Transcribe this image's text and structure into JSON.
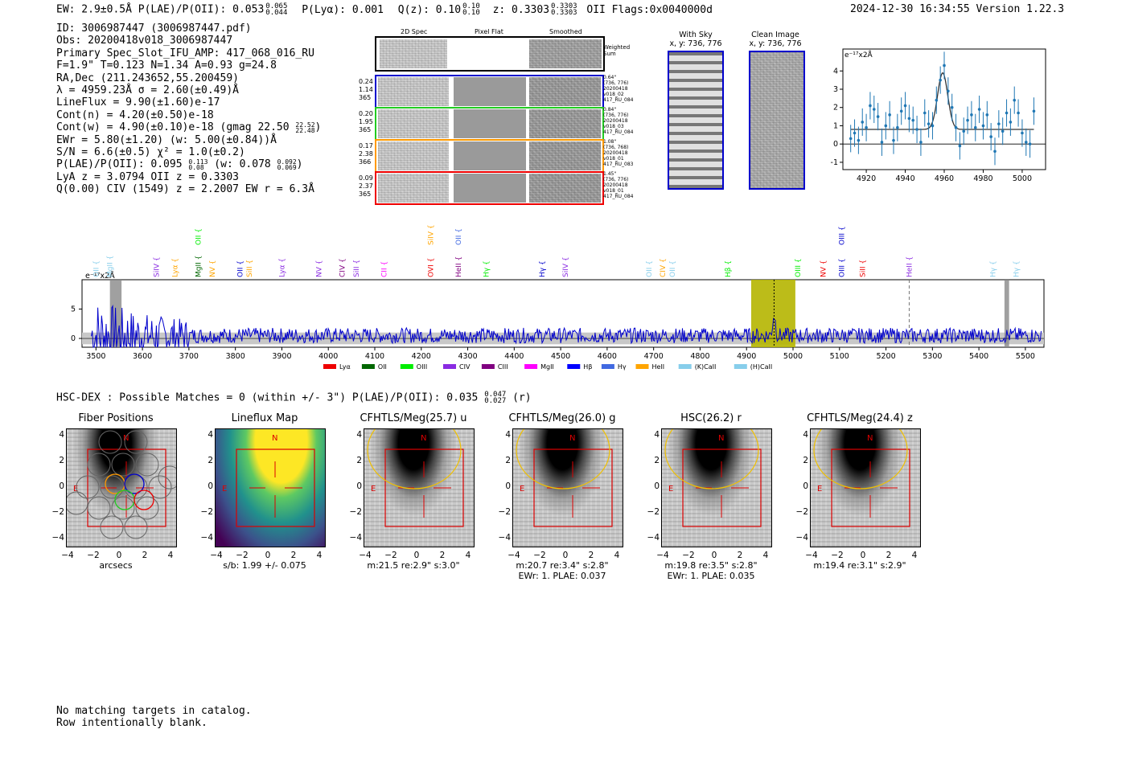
{
  "header": {
    "line": "EW: 2.9±0.5Å  P(LAE)/P(OII): 0.053",
    "pl_sup": "0.065",
    "pl_sub": "0.044",
    "plya": "P(Lyα): 0.001",
    "qz": "Q(z): 0.10",
    "qz_sup": "0.10",
    "qz_sub": "0.10",
    "z": "z: 0.3303",
    "z_sup": "0.3303",
    "z_sub": "0.3303",
    "z_tail": "OII   Flags:0x0040000d",
    "timestamp": "2024-12-30 16:34:55",
    "version": "Version 1.22.3"
  },
  "info": {
    "l1": "ID: 3006987447 (3006987447.pdf)",
    "l2": "Obs: 20200418v018_3006987447",
    "l3": "Primary Spec_Slot_IFU_AMP: 417_068_016_RU",
    "l4": "F=1.9\"  T=0.123  N=1.34  A=0.93  g=24.8",
    "l5": "RA,Dec (211.243652,55.200459)",
    "l6": "λ = 4959.23Å  σ = 2.60(±0.49)Å",
    "l7": "LineFlux = 9.90(±1.60)e-17",
    "l8": "Cont(n) = 4.20(±0.50)e-18",
    "l9": "Cont(w) = 4.90(±0.10)e-18 (gmag 22.50",
    "l9_sup": "22.52",
    "l9_sub": "22.48",
    "l10": "EWr = 5.80(±1.20) (w: 5.00(±0.84))Å",
    "l11": "S/N = 6.6(±0.5)  χ² = 1.0(±0.2)",
    "l12": "P(LAE)/P(OII): 0.095",
    "l12_sup": "0.113",
    "l12_sub": "0.08",
    "l12_w": "(w: 0.078",
    "l12_wsup": "0.092",
    "l12_wsub": "0.069",
    "l13": "LyA z = 3.0794  OII z = 0.3303",
    "l14": "Q(0.00) CIV (1549) z = 2.2007  EW r = 6.3Å"
  },
  "spec2d": {
    "col_headers": [
      "2D Spec",
      "Pixel Flat",
      "Smoothed"
    ],
    "weighted": "Weighted Sum",
    "rows": [
      {
        "left": [
          "0.24",
          "1.14",
          "365"
        ],
        "right": [
          "0.64\"",
          "(736, 776)",
          "20200418",
          "v018_02",
          "417_RU_084"
        ],
        "color": "#0000cc"
      },
      {
        "left": [
          "0.20",
          "1.95",
          "365"
        ],
        "right": [
          "0.84\"",
          "(736, 776)",
          "20200418",
          "v018_03",
          "417_RU_084"
        ],
        "color": "#22cc22"
      },
      {
        "left": [
          "0.17",
          "2.38",
          "366"
        ],
        "right": [
          "1.08\"",
          "(736, 768)",
          "20200418",
          "v018_01",
          "417_RU_083"
        ],
        "color": "#ff9900"
      },
      {
        "left": [
          "0.09",
          "2.37",
          "365"
        ],
        "right": [
          "1.45\"",
          "(736, 776)",
          "20200418",
          "v018_01",
          "417_RU_084"
        ],
        "color": "#ee0000"
      }
    ]
  },
  "sky": {
    "with_sky": "With Sky",
    "with_sky_xy": "x, y: 736, 776",
    "clean": "Clean Image",
    "clean_xy": "x, y: 736, 776"
  },
  "chart_data": [
    {
      "type": "scatter",
      "title": "",
      "unit_label": "e⁻¹⁷x2Å",
      "xlim": [
        4908,
        5012
      ],
      "ylim": [
        -1.4,
        5.2
      ],
      "xticks": [
        4920,
        4940,
        4960,
        4980,
        5000
      ],
      "yticks": [
        -1,
        0,
        1,
        2,
        3,
        4
      ],
      "points_x": [
        4912,
        4914,
        4916,
        4918,
        4920,
        4922,
        4924,
        4926,
        4928,
        4930,
        4932,
        4934,
        4936,
        4938,
        4940,
        4942,
        4944,
        4946,
        4948,
        4950,
        4952,
        4954,
        4956,
        4958,
        4960,
        4962,
        4964,
        4966,
        4968,
        4970,
        4972,
        4974,
        4976,
        4978,
        4980,
        4982,
        4984,
        4986,
        4988,
        4990,
        4992,
        4994,
        4996,
        4998,
        5000,
        5002,
        5004,
        5006
      ],
      "points_y": [
        0.3,
        0.6,
        0.2,
        1.2,
        0.9,
        2.1,
        1.9,
        1.5,
        0.1,
        1.0,
        1.6,
        0.2,
        0.9,
        1.8,
        2.1,
        1.4,
        1.3,
        0.8,
        0.1,
        1.7,
        1.1,
        1.0,
        2.4,
        3.5,
        4.3,
        2.9,
        2.0,
        0.9,
        -0.1,
        0.7,
        1.3,
        1.6,
        0.9,
        1.9,
        1.0,
        1.6,
        0.4,
        -0.4,
        1.1,
        0.7,
        1.7,
        1.2,
        2.4,
        1.7,
        0.6,
        0.1,
        0.0,
        1.8
      ],
      "errors": 0.75,
      "model": {
        "continuum": 0.8,
        "center": 4959.2,
        "amplitude": 3.1,
        "sigma": 2.6,
        "x_range": [
          4912,
          5006
        ]
      }
    },
    {
      "type": "line",
      "unit_label": "e⁻¹⁷x2Å",
      "xlim": [
        3470,
        5540
      ],
      "ylim": [
        -1.5,
        10
      ],
      "xticks": [
        3500,
        3600,
        3700,
        3800,
        3900,
        4000,
        4100,
        4200,
        4300,
        4400,
        4500,
        4600,
        4700,
        4800,
        4900,
        5000,
        5100,
        5200,
        5300,
        5400,
        5500
      ],
      "yticks": [
        0,
        5
      ],
      "highlight_band": [
        4910,
        5005
      ],
      "emission_center": 4959.2,
      "dashed_line_at": 5250,
      "masked_regions": [
        [
          3530,
          3555
        ],
        [
          5455,
          5465
        ]
      ],
      "legend": [
        {
          "label": "Lyα",
          "color": "#ee0000"
        },
        {
          "label": "OII",
          "color": "#006600"
        },
        {
          "label": "OIII",
          "color": "#00ee00"
        },
        {
          "label": "CIV",
          "color": "#8a2be2"
        },
        {
          "label": "CIII",
          "color": "#800080"
        },
        {
          "label": "MgII",
          "color": "#ff00ff"
        },
        {
          "label": "Hβ",
          "color": "#0000ff"
        },
        {
          "label": "Hγ",
          "color": "#4169e1"
        },
        {
          "label": "HeII",
          "color": "#ffa500"
        },
        {
          "label": "(K)CaII",
          "color": "#87ceeb"
        },
        {
          "label": "(H)CaII",
          "color": "#87ceeb"
        }
      ],
      "line_labels": [
        {
          "x": 3500,
          "label": "OII",
          "color": "#87ceeb",
          "row": 1
        },
        {
          "x": 3530,
          "label": "MgII",
          "color": "#87ceeb",
          "row": 1
        },
        {
          "x": 3630,
          "label": "SiIV",
          "color": "#8a2be2",
          "row": 1
        },
        {
          "x": 3670,
          "label": "Lyα",
          "color": "#ffa500",
          "row": 1
        },
        {
          "x": 3720,
          "label": "OII",
          "color": "#00ee00",
          "row": 0
        },
        {
          "x": 3720,
          "label": "MgII",
          "color": "#006600",
          "row": 1
        },
        {
          "x": 3750,
          "label": "NV",
          "color": "#ffa500",
          "row": 1
        },
        {
          "x": 3810,
          "label": "OII",
          "color": "#0000cc",
          "row": 1
        },
        {
          "x": 3830,
          "label": "SiII",
          "color": "#ffa500",
          "row": 1
        },
        {
          "x": 3900,
          "label": "Lyα",
          "color": "#8a2be2",
          "row": 1
        },
        {
          "x": 3980,
          "label": "NV",
          "color": "#8a2be2",
          "row": 1
        },
        {
          "x": 4030,
          "label": "CIV",
          "color": "#800080",
          "row": 1
        },
        {
          "x": 4060,
          "label": "SiII",
          "color": "#8a2be2",
          "row": 1
        },
        {
          "x": 4120,
          "label": "CII",
          "color": "#ff00ff",
          "row": 1
        },
        {
          "x": 4220,
          "label": "SiIV",
          "color": "#ffa500",
          "row": 0
        },
        {
          "x": 4220,
          "label": "OVI",
          "color": "#ee0000",
          "row": 1
        },
        {
          "x": 4280,
          "label": "OII",
          "color": "#4169e1",
          "row": 0
        },
        {
          "x": 4280,
          "label": "HeII",
          "color": "#800080",
          "row": 1
        },
        {
          "x": 4340,
          "label": "Hγ",
          "color": "#00ee00",
          "row": 1
        },
        {
          "x": 4460,
          "label": "Hγ",
          "color": "#0000cc",
          "row": 1
        },
        {
          "x": 4510,
          "label": "SiIV",
          "color": "#8a2be2",
          "row": 1
        },
        {
          "x": 4690,
          "label": "OII",
          "color": "#87ceeb",
          "row": 1
        },
        {
          "x": 4720,
          "label": "CIV",
          "color": "#ffa500",
          "row": 1
        },
        {
          "x": 4740,
          "label": "OII",
          "color": "#87ceeb",
          "row": 1
        },
        {
          "x": 4860,
          "label": "Hβ",
          "color": "#00ee00",
          "row": 1
        },
        {
          "x": 5010,
          "label": "OIII",
          "color": "#00ee00",
          "row": 1
        },
        {
          "x": 5065,
          "label": "NV",
          "color": "#ee0000",
          "row": 1
        },
        {
          "x": 5105,
          "label": "OIII",
          "color": "#0000cc",
          "row": 0
        },
        {
          "x": 5105,
          "label": "OIII",
          "color": "#0000cc",
          "row": 1
        },
        {
          "x": 5150,
          "label": "SiII",
          "color": "#ee0000",
          "row": 1
        },
        {
          "x": 5250,
          "label": "HeII",
          "color": "#8a2be2",
          "row": 1
        },
        {
          "x": 5430,
          "label": "Hγ",
          "color": "#87ceeb",
          "row": 1
        },
        {
          "x": 5480,
          "label": "Hγ",
          "color": "#87ceeb",
          "row": 1
        }
      ]
    }
  ],
  "hsc": {
    "line": "HSC-DEX : Possible Matches = 0 (within +/- 3\")  P(LAE)/P(OII): 0.035",
    "sup": "0.047",
    "sub": "0.027",
    "tail": "(r)"
  },
  "cutouts": [
    {
      "title": "Fiber Positions",
      "caption1": "arcsecs",
      "caption2": "",
      "kind": "fiber"
    },
    {
      "title": "Lineflux Map",
      "caption1": "s/b: 1.99 +/- 0.075",
      "caption2": "",
      "kind": "flux"
    },
    {
      "title": "CFHTLS/Meg(25.7) u",
      "caption1": "m:21.5  re:2.9\"  s:3.0\"",
      "caption2": "",
      "kind": "img"
    },
    {
      "title": "CFHTLS/Meg(26.0) g",
      "caption1": "m:20.7  re:3.4\"  s:2.8\"",
      "caption2": "EWr: 1. PLAE: 0.037",
      "kind": "img"
    },
    {
      "title": "HSC(26.2) r",
      "caption1": "m:19.8  re:3.5\"  s:2.8\"",
      "caption2": "EWr: 1. PLAE: 0.035",
      "kind": "img"
    },
    {
      "title": "CFHTLS/Meg(24.4) z",
      "caption1": "m:19.4  re:3.1\"  s:2.9\"",
      "caption2": "",
      "kind": "img"
    }
  ],
  "cutout_axis": {
    "ticks": [
      "−4",
      "−2",
      "0",
      "2",
      "4"
    ],
    "north": "N",
    "east": "E"
  },
  "footer": {
    "line1": "No matching targets in catalog.",
    "line2": "Row intentionally blank."
  },
  "colors": {
    "blue": "#0000cc",
    "olive": "#b5b500",
    "red": "#dd0000",
    "gold": "#f0c000"
  }
}
